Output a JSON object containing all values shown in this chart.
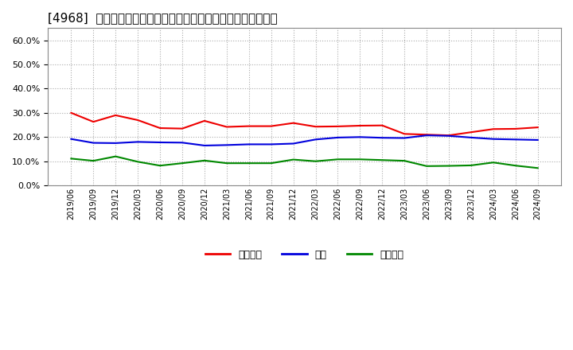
{
  "title": "[4968]  売上債権、在庫、買入債務の総資産に対する比率の推移",
  "x_labels": [
    "2019/06",
    "2019/09",
    "2019/12",
    "2020/03",
    "2020/06",
    "2020/09",
    "2020/12",
    "2021/03",
    "2021/06",
    "2021/09",
    "2021/12",
    "2022/03",
    "2022/06",
    "2022/09",
    "2022/12",
    "2023/03",
    "2023/06",
    "2023/09",
    "2023/12",
    "2024/03",
    "2024/06",
    "2024/09"
  ],
  "series": {
    "売上債権": {
      "color": "#ee0000",
      "values": [
        0.3,
        0.263,
        0.29,
        0.27,
        0.237,
        0.235,
        0.267,
        0.242,
        0.245,
        0.245,
        0.258,
        0.243,
        0.244,
        0.247,
        0.248,
        0.213,
        0.21,
        0.207,
        0.22,
        0.233,
        0.234,
        0.24
      ]
    },
    "在庫": {
      "color": "#0000dd",
      "values": [
        0.192,
        0.176,
        0.175,
        0.18,
        0.178,
        0.177,
        0.165,
        0.167,
        0.17,
        0.17,
        0.173,
        0.19,
        0.198,
        0.2,
        0.197,
        0.196,
        0.207,
        0.205,
        0.198,
        0.192,
        0.19,
        0.188
      ]
    },
    "買入債務": {
      "color": "#008800",
      "values": [
        0.111,
        0.102,
        0.12,
        0.098,
        0.082,
        0.092,
        0.103,
        0.092,
        0.092,
        0.092,
        0.107,
        0.1,
        0.108,
        0.108,
        0.105,
        0.102,
        0.08,
        0.081,
        0.083,
        0.095,
        0.082,
        0.072
      ]
    }
  },
  "ylim": [
    0.0,
    0.65
  ],
  "yticks": [
    0.0,
    0.1,
    0.2,
    0.3,
    0.4,
    0.5,
    0.6
  ],
  "background_color": "#ffffff",
  "plot_bg_color": "#ffffff",
  "grid_color": "#aaaaaa",
  "title_fontsize": 11,
  "legend_labels": [
    "売上債権",
    "在庫",
    "買入債務"
  ],
  "legend_colors": [
    "#ee0000",
    "#0000dd",
    "#008800"
  ]
}
